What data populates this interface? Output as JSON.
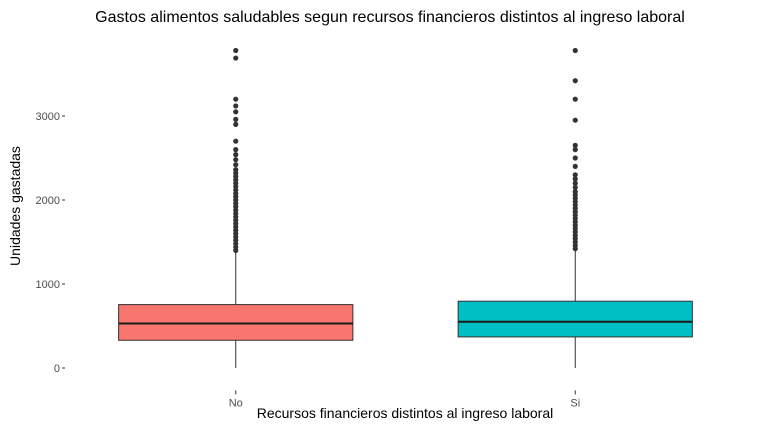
{
  "chart_data": {
    "type": "boxplot",
    "title": "Gastos alimentos saludables segun recursos financieros distintos al ingreso laboral",
    "xlabel": "Recursos financieros distintos al ingreso laboral",
    "ylabel": "Unidades gastadas",
    "categories": [
      "No",
      "Si"
    ],
    "ylim": [
      -100,
      3950
    ],
    "yticks": [
      0,
      1000,
      2000,
      3000
    ],
    "ytick_labels": [
      "0",
      "1000",
      "2000",
      "3000"
    ],
    "grid": false,
    "legend": "none",
    "boxes": [
      {
        "category": "No",
        "color": "#F8766D",
        "whisker_low": 0,
        "q1": 330,
        "median": 530,
        "q3": 755,
        "whisker_high": 1380,
        "outliers": [
          1400,
          1440,
          1480,
          1520,
          1560,
          1600,
          1640,
          1680,
          1720,
          1760,
          1800,
          1840,
          1880,
          1920,
          1960,
          2000,
          2040,
          2080,
          2120,
          2160,
          2200,
          2240,
          2280,
          2320,
          2360,
          2420,
          2480,
          2540,
          2600,
          2700,
          2900,
          2960,
          3050,
          3120,
          3200,
          3690,
          3780
        ]
      },
      {
        "category": "Si",
        "color": "#00BFC4",
        "whisker_low": 0,
        "q1": 370,
        "median": 550,
        "q3": 795,
        "whisker_high": 1400,
        "outliers": [
          1420,
          1460,
          1500,
          1540,
          1580,
          1620,
          1660,
          1700,
          1740,
          1780,
          1820,
          1860,
          1900,
          1940,
          1980,
          2020,
          2060,
          2100,
          2150,
          2200,
          2250,
          2300,
          2400,
          2500,
          2600,
          2650,
          2950,
          3200,
          3420,
          3780
        ]
      }
    ]
  }
}
